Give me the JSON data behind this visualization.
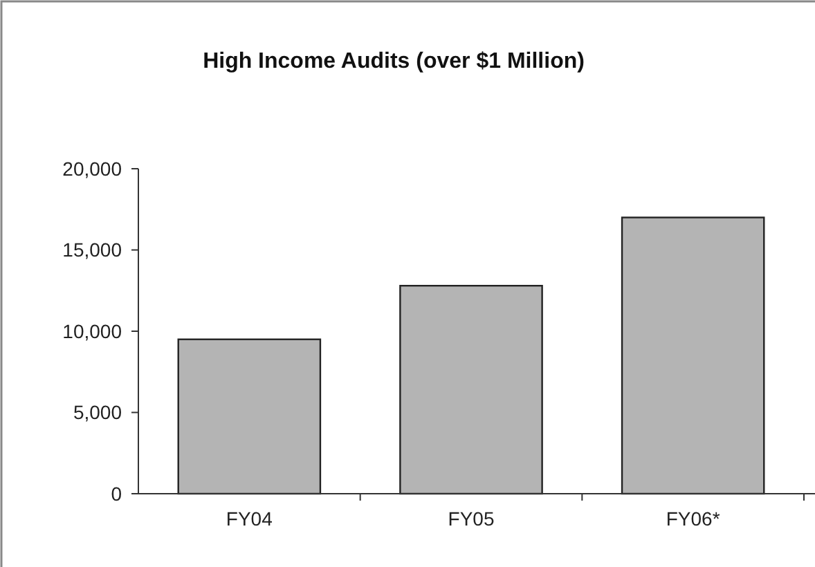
{
  "chart_data": {
    "type": "bar",
    "title": "High Income Audits (over $1 Million)",
    "categories": [
      "FY04",
      "FY05",
      "FY06*"
    ],
    "values": [
      9500,
      12800,
      17000
    ],
    "color": "#b4b4b4",
    "ylim": [
      0,
      20000
    ],
    "yticks": [
      {
        "value": 0,
        "label": "0"
      },
      {
        "value": 5000,
        "label": "5,000"
      },
      {
        "value": 10000,
        "label": "10,000"
      },
      {
        "value": 15000,
        "label": "15,000"
      },
      {
        "value": 20000,
        "label": "20,000"
      }
    ],
    "grid": false
  }
}
